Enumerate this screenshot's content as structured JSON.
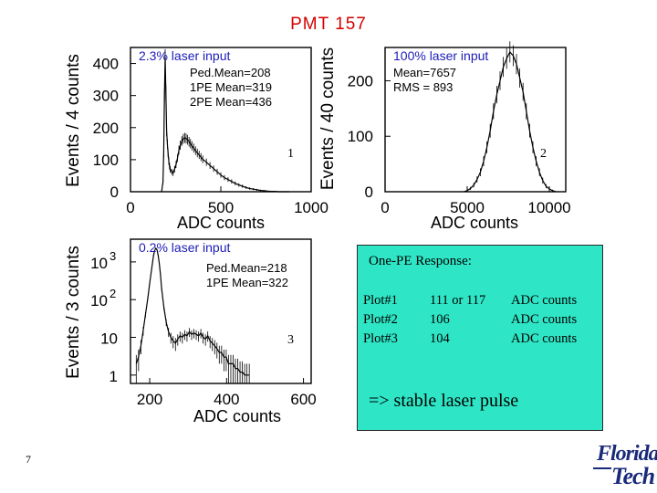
{
  "slide": {
    "title": "PMT 157",
    "number": "7"
  },
  "logo": {
    "line1": "Florida",
    "line2": "Tech"
  },
  "colors": {
    "title": "#d40000",
    "panel_label": "#1d1db8",
    "box": "#2ee6c6",
    "logo": "#1a2a7a"
  },
  "chart_data": [
    {
      "type": "histogram",
      "panel_number": "1",
      "label": "2.3% laser input",
      "stats": [
        "Ped.Mean=208",
        "1PE Mean=319",
        "2PE Mean=436"
      ],
      "xlabel": "ADC counts",
      "ylabel": "Events / 4 counts",
      "xlim": [
        0,
        1000
      ],
      "ylim": [
        0,
        450
      ],
      "yscale": "linear",
      "x_ticks": [
        "0",
        "500",
        "1000"
      ],
      "y_ticks": [
        "0",
        "100",
        "200",
        "300",
        "400"
      ],
      "x": [
        172,
        180,
        184,
        188,
        192,
        196,
        200,
        204,
        208,
        212,
        216,
        220,
        228,
        236,
        244,
        252,
        260,
        268,
        276,
        284,
        292,
        300,
        308,
        316,
        324,
        332,
        340,
        350,
        360,
        370,
        380,
        390,
        400,
        420,
        440,
        460,
        480,
        500,
        520,
        540,
        560,
        580,
        600,
        620,
        640,
        660,
        680,
        700,
        720,
        740,
        760,
        780,
        800,
        820,
        840,
        860,
        880
      ],
      "y": [
        0,
        30,
        120,
        300,
        420,
        310,
        190,
        150,
        120,
        95,
        80,
        70,
        62,
        58,
        70,
        85,
        105,
        130,
        145,
        158,
        165,
        168,
        166,
        162,
        156,
        150,
        143,
        136,
        128,
        121,
        115,
        108,
        101,
        92,
        82,
        72,
        62,
        52,
        44,
        38,
        32,
        26,
        21,
        17,
        13,
        10,
        8,
        6,
        4,
        3,
        2,
        1,
        1,
        0,
        0,
        0,
        0
      ]
    },
    {
      "type": "histogram",
      "panel_number": "2",
      "label": "100% laser input",
      "stats": [
        "Mean=7657",
        "RMS = 893"
      ],
      "xlabel": "ADC counts",
      "ylabel": "Events / 40 counts",
      "xlim": [
        0,
        11000
      ],
      "ylim": [
        0,
        260
      ],
      "yscale": "linear",
      "x_ticks": [
        "0",
        "5000",
        "10000"
      ],
      "y_ticks": [
        "0",
        "100",
        "200"
      ],
      "x": [
        4800,
        5000,
        5200,
        5400,
        5600,
        5800,
        6000,
        6200,
        6400,
        6600,
        6800,
        7000,
        7200,
        7400,
        7600,
        7800,
        8000,
        8200,
        8400,
        8600,
        8800,
        9000,
        9200,
        9400,
        9600,
        9800,
        10000,
        10200,
        10400
      ],
      "y": [
        0,
        2,
        6,
        12,
        22,
        35,
        55,
        80,
        110,
        145,
        175,
        200,
        225,
        240,
        252,
        245,
        230,
        205,
        180,
        145,
        110,
        80,
        55,
        35,
        20,
        10,
        5,
        2,
        0
      ]
    },
    {
      "type": "histogram",
      "panel_number": "3",
      "label": "0.2% laser input",
      "stats": [
        "Ped.Mean=218",
        "1PE Mean=322"
      ],
      "xlabel": "ADC counts",
      "ylabel": "Events / 3 counts",
      "xlim": [
        150,
        620
      ],
      "ylim": [
        0.6,
        4000
      ],
      "yscale": "log",
      "x_ticks": [
        "200",
        "400",
        "600"
      ],
      "y_ticks_major": [
        "1",
        "10",
        "10",
        "10"
      ],
      "y_ticks_exp": [
        "",
        "",
        "2",
        "3"
      ],
      "x": [
        165,
        171,
        177,
        183,
        189,
        195,
        201,
        207,
        210,
        213,
        216,
        219,
        222,
        225,
        228,
        231,
        237,
        243,
        249,
        255,
        261,
        267,
        273,
        279,
        285,
        291,
        297,
        303,
        309,
        315,
        321,
        327,
        333,
        339,
        345,
        351,
        357,
        363,
        369,
        375,
        381,
        387,
        393,
        399,
        405,
        411,
        417,
        423,
        429,
        435,
        441,
        447,
        453,
        459
      ],
      "y": [
        2,
        3,
        6,
        15,
        40,
        110,
        330,
        900,
        1500,
        2000,
        2300,
        2100,
        1500,
        900,
        450,
        200,
        60,
        25,
        14,
        10,
        8,
        7,
        9,
        11,
        10,
        12,
        11,
        14,
        12,
        13,
        12,
        11,
        13,
        10,
        9,
        11,
        8,
        7,
        6,
        5,
        4,
        4,
        3,
        3,
        2,
        2,
        2,
        1.5,
        1.5,
        1.2,
        1.2,
        1.0,
        1.0,
        1.0
      ]
    }
  ],
  "results_box": {
    "title": "One-PE Response:",
    "rows": [
      {
        "plot": "Plot#1",
        "value": "111 or 117",
        "unit": "ADC counts"
      },
      {
        "plot": "Plot#2",
        "value": "106",
        "unit": "ADC counts"
      },
      {
        "plot": "Plot#3",
        "value": "104",
        "unit": "ADC counts"
      }
    ],
    "conclusion": "=> stable laser pulse"
  }
}
